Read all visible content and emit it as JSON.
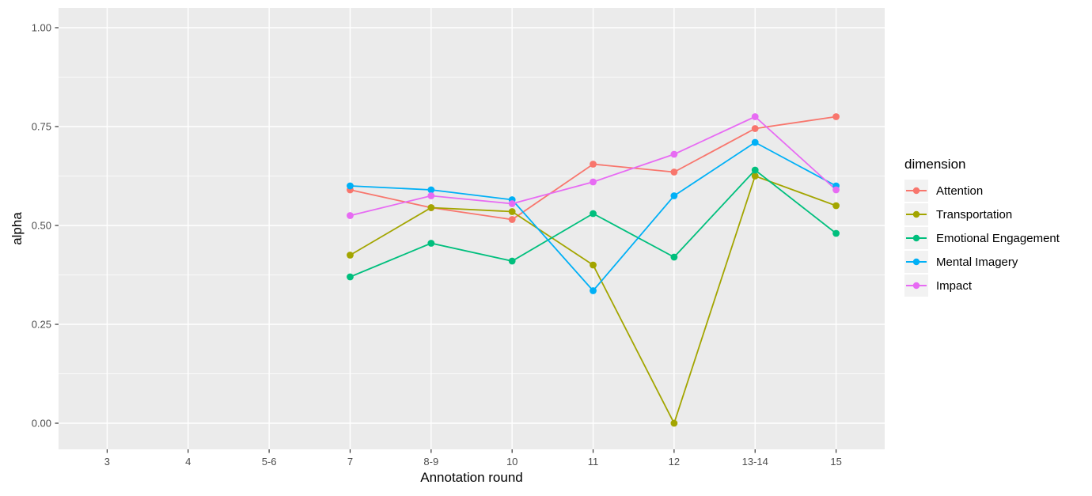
{
  "chart_data": {
    "type": "line",
    "title": "",
    "xlabel": "Annotation round",
    "ylabel": "alpha",
    "categories": [
      "3",
      "4",
      "5-6",
      "7",
      "8-9",
      "10",
      "11",
      "12",
      "13-14",
      "15"
    ],
    "y_ticks": [
      0.0,
      0.25,
      0.5,
      0.75,
      1.0
    ],
    "y_tick_labels": [
      "0.00",
      "0.25",
      "0.50",
      "0.75",
      "1.00"
    ],
    "y_minor_ticks": [
      0.125,
      0.375,
      0.625,
      0.875
    ],
    "ylim": [
      -0.07,
      1.05
    ],
    "grid": "white major and minor gridlines on grey panel",
    "legend_title": "dimension",
    "legend_position": "right",
    "series": [
      {
        "name": "Attention",
        "color": "#F8766D",
        "values": [
          null,
          null,
          null,
          0.59,
          0.545,
          0.515,
          0.655,
          0.635,
          0.745,
          0.775
        ]
      },
      {
        "name": "Transportation",
        "color": "#A3A500",
        "values": [
          null,
          null,
          null,
          0.425,
          0.545,
          0.535,
          0.4,
          0.0,
          0.625,
          0.55
        ]
      },
      {
        "name": "Emotional Engagement",
        "color": "#00BF7D",
        "values": [
          null,
          null,
          null,
          0.37,
          0.455,
          0.41,
          0.53,
          0.42,
          0.64,
          0.48
        ]
      },
      {
        "name": "Mental Imagery",
        "color": "#00B0F6",
        "values": [
          null,
          null,
          null,
          0.6,
          0.59,
          0.565,
          0.335,
          0.575,
          0.71,
          0.6
        ]
      },
      {
        "name": "Impact",
        "color": "#E76BF3",
        "values": [
          null,
          null,
          null,
          0.525,
          0.575,
          0.555,
          0.61,
          0.68,
          0.775,
          0.59
        ]
      }
    ]
  },
  "colors": {
    "page_bg": "#FFFFFF",
    "panel_bg": "#EBEBEB",
    "gridline": "#FFFFFF",
    "tick_mark": "#333333",
    "tick_text": "#4D4D4D",
    "axis_title_text": "#000000",
    "legend_key_bg": "#F2F2F2"
  }
}
